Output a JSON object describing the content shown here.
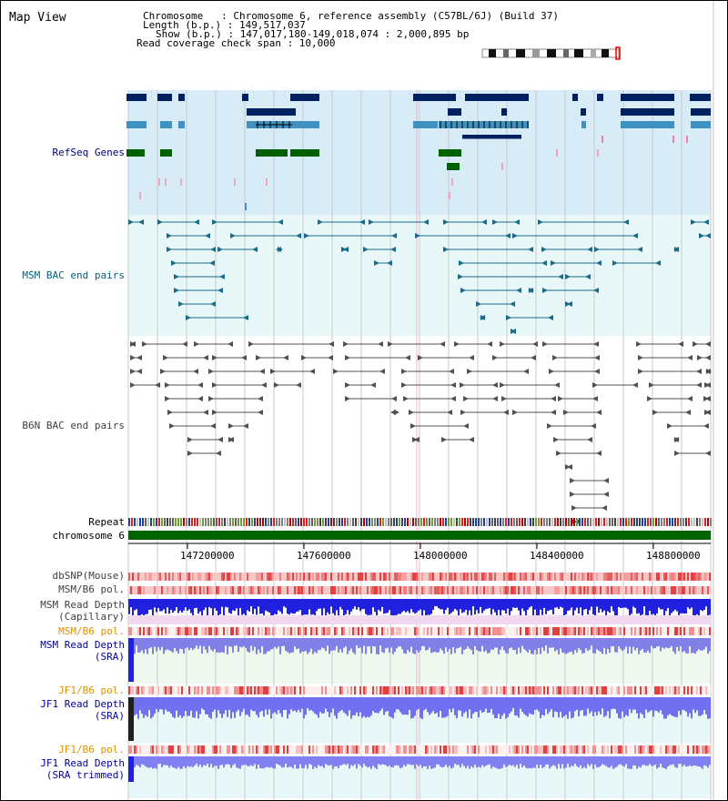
{
  "header": {
    "title": "Map View",
    "chromosome_line": "Chromosome   : Chromosome 6, reference assembly (C57BL/6J) (Build 37)",
    "length_line": "Length (b.p.) : 149,517,037",
    "show_line": "Show (b.p.) : 147,017,180-149,018,074 : 2,000,895 bp",
    "coverage_line": "Read coverage check span : 10,000"
  },
  "tracks": {
    "refseq": "RefSeq Genes",
    "msm_bac": "MSM BAC end pairs",
    "b6n_bac": "B6N BAC end pairs",
    "repeat": "Repeat",
    "chromosome": "chromosome 6",
    "dbsnp": "dbSNP(Mouse)",
    "msm_b6_pol_1": "MSM/B6 pol.",
    "msm_read_depth_cap_1": "MSM Read Depth",
    "msm_read_depth_cap_2": "(Capillary)",
    "msm_b6_pol_2": "MSM/B6 pol.",
    "msm_read_depth_sra_1": "MSM Read Depth",
    "msm_read_depth_sra_2": "(SRA)",
    "jf1_b6_pol_1": "JF1/B6 pol.",
    "jf1_read_depth_sra_1": "JF1 Read Depth",
    "jf1_read_depth_sra_2": "(SRA)",
    "jf1_b6_pol_2": "JF1/B6 pol.",
    "jf1_read_depth_trim_1": "JF1 Read Depth",
    "jf1_read_depth_trim_2": "(SRA trimmed)"
  },
  "axis": {
    "ticks": [
      "147200000",
      "147600000",
      "148000000",
      "148400000",
      "148800000"
    ]
  },
  "colors": {
    "label_navy": "#000080",
    "label_teal": "#006080",
    "label_gray": "#404040",
    "label_orange": "#e09000",
    "label_blue": "#0000a0",
    "refseq_bg": "#d8ecf8",
    "msm_bg": "#e8f8f8",
    "gene_navy": "#002060",
    "gene_steel": "#4090c0",
    "gene_green": "#006000",
    "chrom_green": "#006400"
  }
}
